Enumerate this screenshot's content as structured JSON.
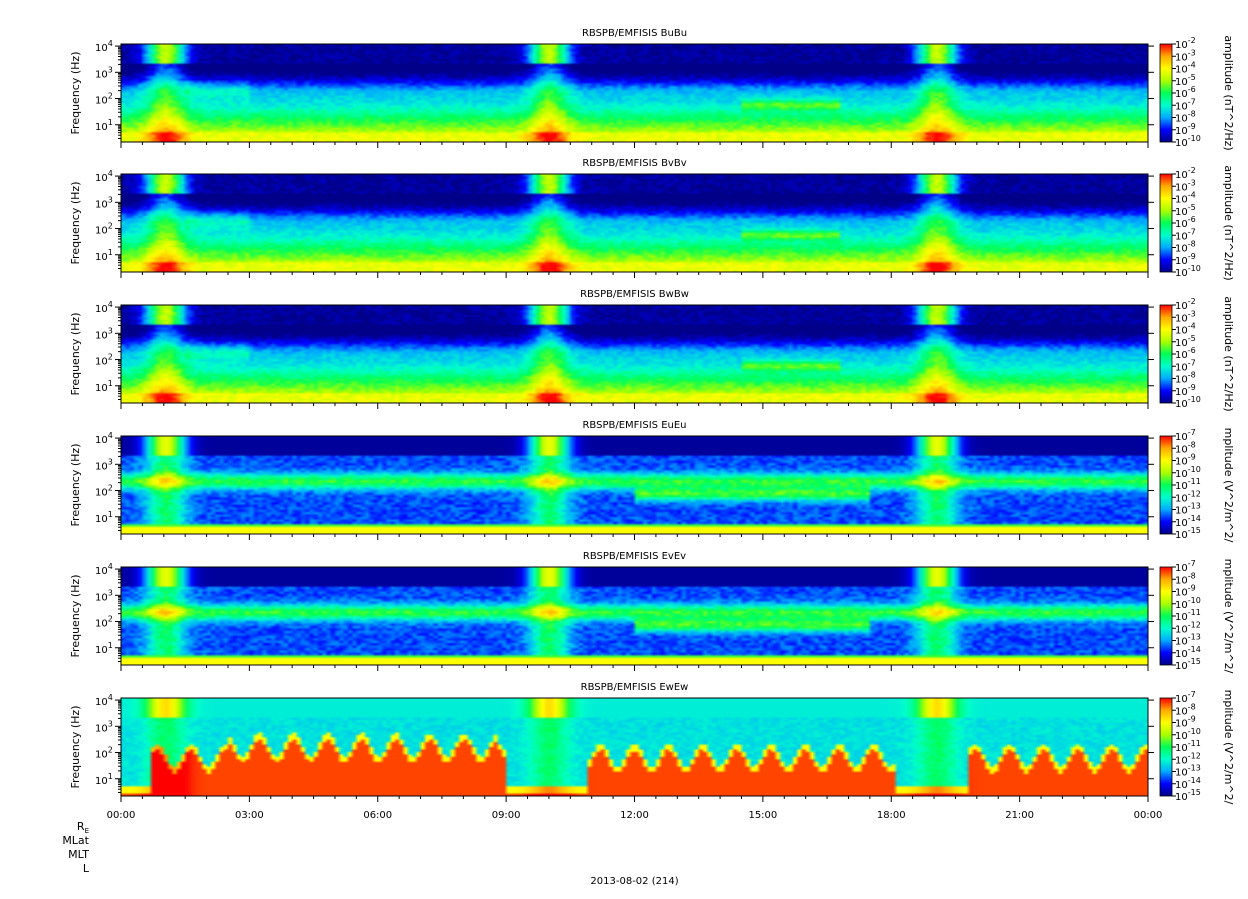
{
  "chart_data": {
    "type": "heatmap",
    "title": "",
    "x_axis": {
      "tick_labels": [
        "00:00",
        "03:00",
        "06:00",
        "09:00",
        "12:00",
        "15:00",
        "18:00",
        "21:00",
        "00:00"
      ],
      "range_hours": [
        0,
        24
      ],
      "date_label": "2013-08-02 (214)",
      "row_labels": [
        "RE",
        "MLat",
        "MLT",
        "L"
      ]
    },
    "y_axis": {
      "label": "Frequency (Hz)",
      "scale": "log",
      "range_hz": [
        2.2,
        12000
      ],
      "ticks": [
        {
          "base": "10",
          "exp": "4",
          "value": 10000
        },
        {
          "base": "10",
          "exp": "3",
          "value": 1000
        },
        {
          "base": "10",
          "exp": "2",
          "value": 100
        },
        {
          "base": "10",
          "exp": "1",
          "value": 10
        }
      ]
    },
    "colormap": [
      "#000088",
      "#0000ff",
      "#00aaff",
      "#00ffcc",
      "#00ff55",
      "#aaff00",
      "#ffff00",
      "#ffaa00",
      "#ff0000"
    ],
    "panels": [
      {
        "title": "RBSPB/EMFISIS  BuBu",
        "colorbar_unit": "amplitude (nT^2/Hz)",
        "colorbar_exponents": [
          "-2",
          "-3",
          "-4",
          "-5",
          "-6",
          "-7",
          "-8",
          "-9",
          "-10"
        ],
        "kind": "mag"
      },
      {
        "title": "RBSPB/EMFISIS  BvBv",
        "colorbar_unit": "amplitude (nT^2/Hz)",
        "colorbar_exponents": [
          "-2",
          "-3",
          "-4",
          "-5",
          "-6",
          "-7",
          "-8",
          "-9",
          "-10"
        ],
        "kind": "mag"
      },
      {
        "title": "RBSPB/EMFISIS  BwBw",
        "colorbar_unit": "amplitude (nT^2/Hz)",
        "colorbar_exponents": [
          "-2",
          "-3",
          "-4",
          "-5",
          "-6",
          "-7",
          "-8",
          "-9",
          "-10"
        ],
        "kind": "mag"
      },
      {
        "title": "RBSPB/EMFISIS  EuEu",
        "colorbar_unit": "mplitude (V^2/m^2/",
        "colorbar_exponents": [
          "-7",
          "-8",
          "-9",
          "-10",
          "-11",
          "-12",
          "-13",
          "-14",
          "-15"
        ],
        "kind": "elec"
      },
      {
        "title": "RBSPB/EMFISIS  EvEv",
        "colorbar_unit": "mplitude (V^2/m^2/",
        "colorbar_exponents": [
          "-7",
          "-8",
          "-9",
          "-10",
          "-11",
          "-12",
          "-13",
          "-14",
          "-15"
        ],
        "kind": "elec"
      },
      {
        "title": "RBSPB/EMFISIS  EwEw",
        "colorbar_unit": "mplitude (V^2/m^2/",
        "colorbar_exponents": [
          "-7",
          "-8",
          "-9",
          "-10",
          "-11",
          "-12",
          "-13",
          "-14",
          "-15"
        ],
        "kind": "ew"
      }
    ]
  }
}
